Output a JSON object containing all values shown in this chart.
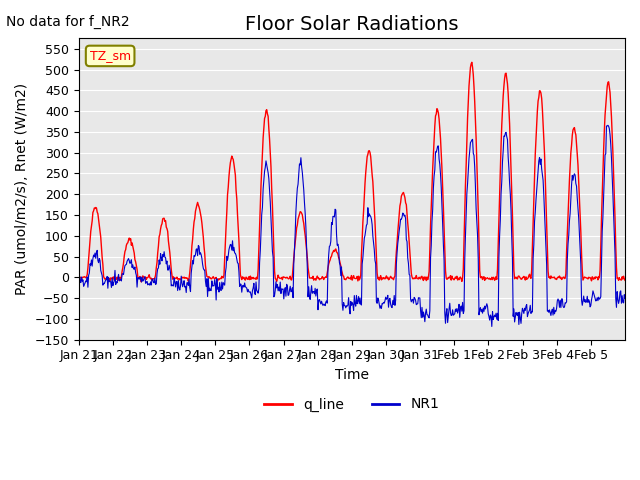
{
  "title": "Floor Solar Radiations",
  "xlabel": "Time",
  "ylabel": "PAR (umol/m2/s), Rnet (W/m2)",
  "annotation_text": "No data for f_NR2",
  "legend_box_text": "TZ_sm",
  "ylim": [
    -150,
    575
  ],
  "yticks": [
    -150,
    -100,
    -50,
    0,
    50,
    100,
    150,
    200,
    250,
    300,
    350,
    400,
    450,
    500,
    550
  ],
  "xtick_labels": [
    "Jan 21",
    "Jan 22",
    "Jan 23",
    "Jan 24",
    "Jan 25",
    "Jan 26",
    "Jan 27",
    "Jan 28",
    "Jan 29",
    "Jan 30",
    "Jan 31",
    "Feb 1",
    "Feb 2",
    "Feb 3",
    "Feb 4",
    "Feb 5"
  ],
  "q_line_color": "#FF0000",
  "nr1_color": "#0000CC",
  "background_color": "#E8E8E8",
  "title_fontsize": 14,
  "annotation_fontsize": 10,
  "axis_label_fontsize": 10,
  "tick_fontsize": 9
}
